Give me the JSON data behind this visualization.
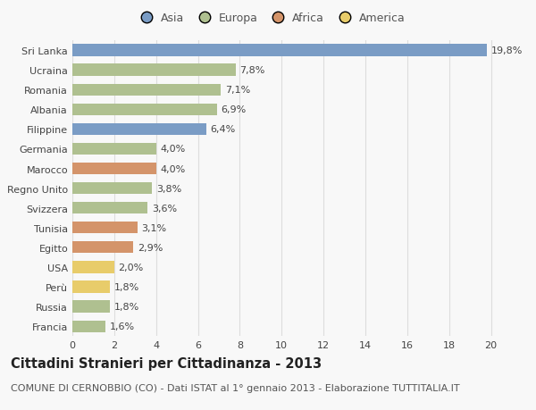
{
  "categories": [
    "Francia",
    "Russia",
    "Perù",
    "USA",
    "Egitto",
    "Tunisia",
    "Svizzera",
    "Regno Unito",
    "Marocco",
    "Germania",
    "Filippine",
    "Albania",
    "Romania",
    "Ucraina",
    "Sri Lanka"
  ],
  "values": [
    1.6,
    1.8,
    1.8,
    2.0,
    2.9,
    3.1,
    3.6,
    3.8,
    4.0,
    4.0,
    6.4,
    6.9,
    7.1,
    7.8,
    19.8
  ],
  "labels": [
    "1,6%",
    "1,8%",
    "1,8%",
    "2,0%",
    "2,9%",
    "3,1%",
    "3,6%",
    "3,8%",
    "4,0%",
    "4,0%",
    "6,4%",
    "6,9%",
    "7,1%",
    "7,8%",
    "19,8%"
  ],
  "continents": [
    "Europa",
    "Europa",
    "America",
    "America",
    "Africa",
    "Africa",
    "Europa",
    "Europa",
    "Africa",
    "Europa",
    "Asia",
    "Europa",
    "Europa",
    "Europa",
    "Asia"
  ],
  "colors": {
    "Asia": "#7a9cc5",
    "Europa": "#afc090",
    "Africa": "#d4946a",
    "America": "#e8cc6a"
  },
  "legend_labels": [
    "Asia",
    "Europa",
    "Africa",
    "America"
  ],
  "legend_colors": [
    "#7a9cc5",
    "#afc090",
    "#d4946a",
    "#e8cc6a"
  ],
  "title": "Cittadini Stranieri per Cittadinanza - 2013",
  "subtitle": "COMUNE DI CERNOBBIO (CO) - Dati ISTAT al 1° gennaio 2013 - Elaborazione TUTTITALIA.IT",
  "xlim": [
    0,
    21
  ],
  "xticks": [
    0,
    2,
    4,
    6,
    8,
    10,
    12,
    14,
    16,
    18,
    20
  ],
  "background_color": "#f8f8f8",
  "grid_color": "#dddddd",
  "bar_height": 0.6,
  "title_fontsize": 10.5,
  "subtitle_fontsize": 8,
  "tick_fontsize": 8,
  "label_fontsize": 8
}
